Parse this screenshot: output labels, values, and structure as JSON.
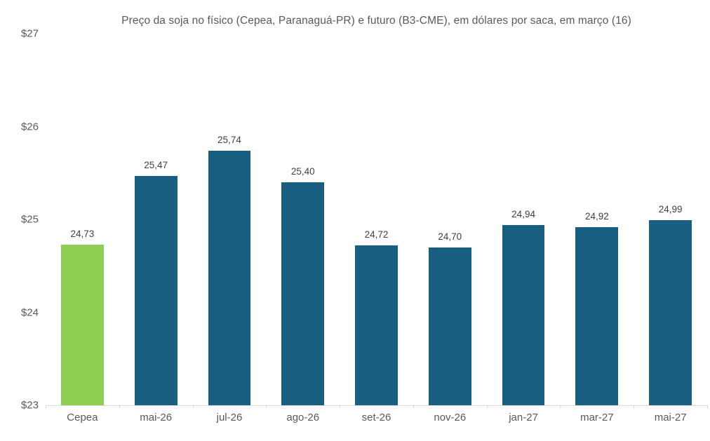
{
  "chart_data": {
    "type": "bar",
    "title": "Preço da soja no físico (Cepea, Paranaguá-PR) e futuro (B3-CME), em dólares por saca, em março (16)",
    "xlabel": "",
    "ylabel": "",
    "categories": [
      "Cepea",
      "mai-26",
      "jul-26",
      "ago-26",
      "set-26",
      "nov-26",
      "jan-27",
      "mar-27",
      "mai-27"
    ],
    "values": [
      24.73,
      25.47,
      25.74,
      25.4,
      24.72,
      24.7,
      24.94,
      24.92,
      24.99
    ],
    "value_labels": [
      "24,73",
      "25,47",
      "25,74",
      "25,40",
      "24,72",
      "24,70",
      "24,94",
      "24,92",
      "24,99"
    ],
    "ylim": [
      23,
      27
    ],
    "yticks": [
      23,
      24,
      25,
      26,
      27
    ],
    "ytick_labels": [
      "$23",
      "$24",
      "$25",
      "$26",
      "$27"
    ],
    "grid": false,
    "legend": "none",
    "bar_colors": [
      "#8DCE52",
      "#175E80",
      "#175E80",
      "#175E80",
      "#175E80",
      "#175E80",
      "#175E80",
      "#175E80",
      "#175E80"
    ]
  },
  "colors": {
    "cepea_bar": "#8DCE52",
    "futures_bar": "#175E80",
    "axis_line": "#d9d9d9",
    "title_text": "#595959",
    "axis_text": "#595959",
    "value_label_text": "#404040"
  }
}
